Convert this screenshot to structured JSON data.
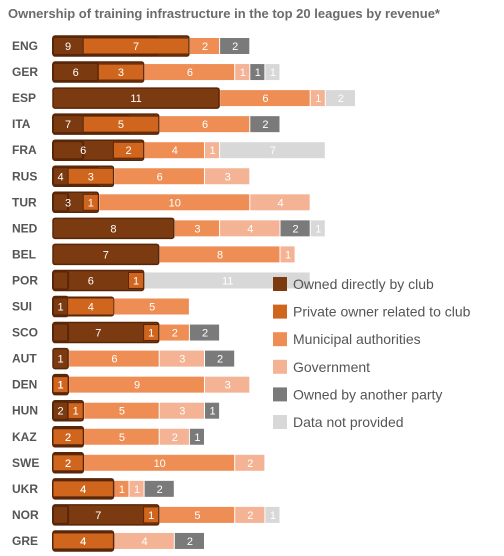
{
  "title": "Ownership of training infrastructure in the top 20 leagues by revenue*",
  "colors": {
    "owned_directly_by_club": "#7b3a10",
    "owned_outline": "#5a2608",
    "private_owner_related_to_club": "#d0651e",
    "municipal_authorities": "#ee8e55",
    "government": "#f4b394",
    "owned_by_another_party": "#7a7a7a",
    "data_not_provided": "#d8d8d8"
  },
  "chart_data": {
    "type": "bar",
    "orientation": "horizontal",
    "stacked": true,
    "title": "Ownership of training infrastructure in the top 20 leagues by revenue*",
    "legend_position": "right",
    "categories": [
      "ENG",
      "GER",
      "ESP",
      "ITA",
      "FRA",
      "RUS",
      "TUR",
      "NED",
      "BEL",
      "POR",
      "SUI",
      "SCO",
      "AUT",
      "DEN",
      "HUN",
      "KAZ",
      "SWE",
      "UKR",
      "NOR",
      "GRE"
    ],
    "series": [
      {
        "name": "Owned directly by club",
        "key": "owned_directly_by_club",
        "values": [
          9,
          6,
          11,
          7,
          6,
          4,
          3,
          8,
          7,
          6,
          1,
          7,
          1,
          1,
          2,
          2,
          2,
          4,
          7,
          4
        ]
      },
      {
        "name": "Private owner related to club",
        "key": "private_owner_related_to_club",
        "values": [
          7,
          3,
          0,
          5,
          2,
          3,
          1,
          0,
          0,
          1,
          4,
          1,
          0,
          1,
          1,
          2,
          2,
          4,
          1,
          4
        ]
      },
      {
        "name": "Municipal authorities",
        "key": "municipal_authorities",
        "values": [
          2,
          6,
          6,
          6,
          4,
          6,
          10,
          3,
          8,
          0,
          5,
          2,
          6,
          9,
          5,
          5,
          10,
          1,
          5,
          0
        ]
      },
      {
        "name": "Government",
        "key": "government",
        "values": [
          0,
          1,
          1,
          0,
          1,
          3,
          4,
          4,
          1,
          0,
          0,
          0,
          3,
          3,
          3,
          2,
          2,
          1,
          2,
          4
        ]
      },
      {
        "name": "Owned by another party",
        "key": "owned_by_another_party",
        "values": [
          2,
          1,
          0,
          2,
          0,
          0,
          0,
          2,
          0,
          0,
          0,
          2,
          2,
          0,
          1,
          1,
          0,
          2,
          0,
          2
        ]
      },
      {
        "name": "Data not provided",
        "key": "data_not_provided",
        "values": [
          0,
          1,
          2,
          0,
          7,
          0,
          0,
          1,
          0,
          11,
          0,
          0,
          0,
          0,
          0,
          0,
          0,
          0,
          1,
          0
        ]
      }
    ],
    "private_owner_overlaps_owned_bar": true
  }
}
